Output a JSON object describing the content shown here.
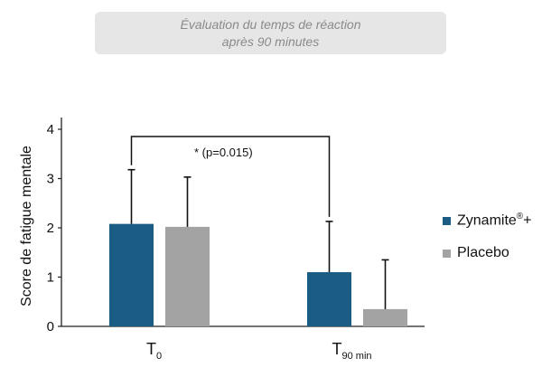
{
  "header": {
    "title_line1": "Évaluation du temps de réaction",
    "title_line2": "après 90 minutes"
  },
  "chart_data": {
    "type": "bar",
    "ylabel": "Score de fatigue mentale",
    "ylim": [
      0,
      4
    ],
    "yticks": [
      "0",
      "1",
      "2",
      "3",
      "4"
    ],
    "categories": [
      {
        "main": "T",
        "sub": "0"
      },
      {
        "main": "T",
        "sub": "90 min"
      }
    ],
    "series": [
      {
        "name": "Zynamite",
        "name_sup": "®",
        "name_suffix": "+",
        "color": "#1a5c84",
        "values": [
          2.08,
          1.1
        ],
        "errors": [
          1.1,
          1.03
        ]
      },
      {
        "name": "Placebo",
        "color": "#a3a3a3",
        "values": [
          2.02,
          0.35
        ],
        "errors": [
          1.01,
          1.0
        ]
      }
    ],
    "annotation": "* (p=0.015)",
    "legend_position": "right",
    "grid": false
  }
}
